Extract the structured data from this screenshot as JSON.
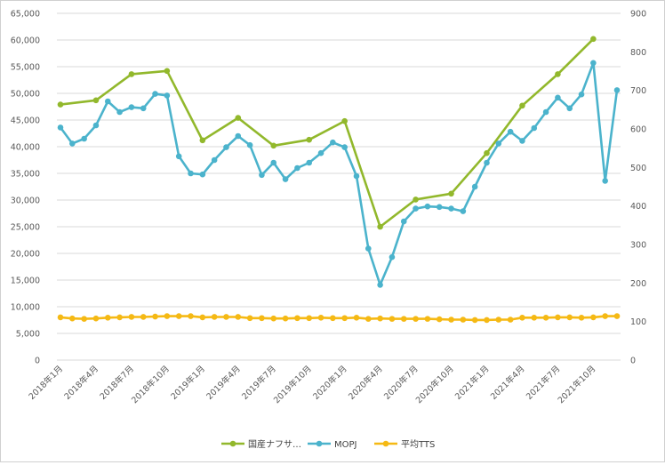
{
  "chart_data": {
    "type": "line",
    "title": "",
    "xlabel": "",
    "ylabel": "",
    "y_left_ticks": [
      "0",
      "5,000",
      "10,000",
      "15,000",
      "20,000",
      "25,000",
      "30,000",
      "35,000",
      "40,000",
      "45,000",
      "50,000",
      "55,000",
      "60,000",
      "65,000"
    ],
    "y_right_ticks": [
      "0",
      "100",
      "200",
      "300",
      "400",
      "500",
      "600",
      "700",
      "800",
      "900"
    ],
    "ylim_left": [
      0,
      65000
    ],
    "ylim_right": [
      0,
      900
    ],
    "x_tick_labels": [
      "2018年1月",
      "2018年4月",
      "2018年7月",
      "2018年10月",
      "2019年1月",
      "2019年4月",
      "2019年7月",
      "2019年10月",
      "2020年1月",
      "2020年4月",
      "2020年7月",
      "2020年10月",
      "2021年1月",
      "2021年4月",
      "2021年7月",
      "2021年10月"
    ],
    "x_tick_months": [
      0,
      3,
      6,
      9,
      12,
      15,
      18,
      21,
      24,
      27,
      30,
      33,
      36,
      39,
      42,
      45
    ],
    "grid": "horizontal",
    "legend_position": "bottom",
    "series": [
      {
        "name": "国産ナフサ…",
        "axis": "left",
        "color": "#92b82c",
        "months": [
          0,
          3,
          6,
          9,
          12,
          15,
          18,
          21,
          24,
          27,
          30,
          33,
          36,
          39,
          42,
          45
        ],
        "values": [
          47900,
          48700,
          53600,
          54200,
          41200,
          45400,
          40200,
          41300,
          44800,
          25000,
          30100,
          31200,
          38800,
          47700,
          53600,
          60200
        ]
      },
      {
        "name": "MOPJ",
        "axis": "left",
        "color": "#4bb3cc",
        "months": [
          0,
          1,
          2,
          3,
          4,
          5,
          6,
          7,
          8,
          9,
          10,
          11,
          12,
          13,
          14,
          15,
          16,
          17,
          18,
          19,
          20,
          21,
          22,
          23,
          24,
          25,
          26,
          27,
          28,
          29,
          30,
          31,
          32,
          33,
          34,
          35,
          36,
          37,
          38,
          39,
          40,
          41,
          42,
          43,
          44,
          45,
          46,
          47
        ],
        "values": [
          43600,
          40600,
          41500,
          44000,
          48500,
          46500,
          47400,
          47200,
          49900,
          49600,
          38200,
          35000,
          34800,
          37500,
          39900,
          42000,
          40300,
          34700,
          37000,
          33900,
          36000,
          37000,
          38800,
          40800,
          39900,
          34500,
          20900,
          14100,
          19300,
          26000,
          28400,
          28800,
          28700,
          28400,
          27900,
          32500,
          37000,
          40600,
          42800,
          41100,
          43500,
          46500,
          49200,
          47200,
          49800,
          55700,
          33600,
          50600
        ]
      },
      {
        "name": "平均TTS",
        "axis": "right",
        "color": "#f5b914",
        "months": [
          0,
          1,
          2,
          3,
          4,
          5,
          6,
          7,
          8,
          9,
          10,
          11,
          12,
          13,
          14,
          15,
          16,
          17,
          18,
          19,
          20,
          21,
          22,
          23,
          24,
          25,
          26,
          27,
          28,
          29,
          30,
          31,
          32,
          33,
          34,
          35,
          36,
          37,
          38,
          39,
          40,
          41,
          42,
          43,
          44,
          45,
          46,
          47
        ],
        "values": [
          111,
          108,
          107,
          108,
          110,
          111,
          112,
          112,
          113,
          114,
          114,
          114,
          111,
          112,
          112,
          112,
          109,
          109,
          108,
          108,
          109,
          109,
          110,
          109,
          109,
          110,
          107,
          108,
          107,
          107,
          107,
          107,
          106,
          105,
          105,
          104,
          104,
          105,
          105,
          110,
          110,
          110,
          111,
          111,
          110,
          111,
          114,
          114
        ]
      }
    ]
  }
}
